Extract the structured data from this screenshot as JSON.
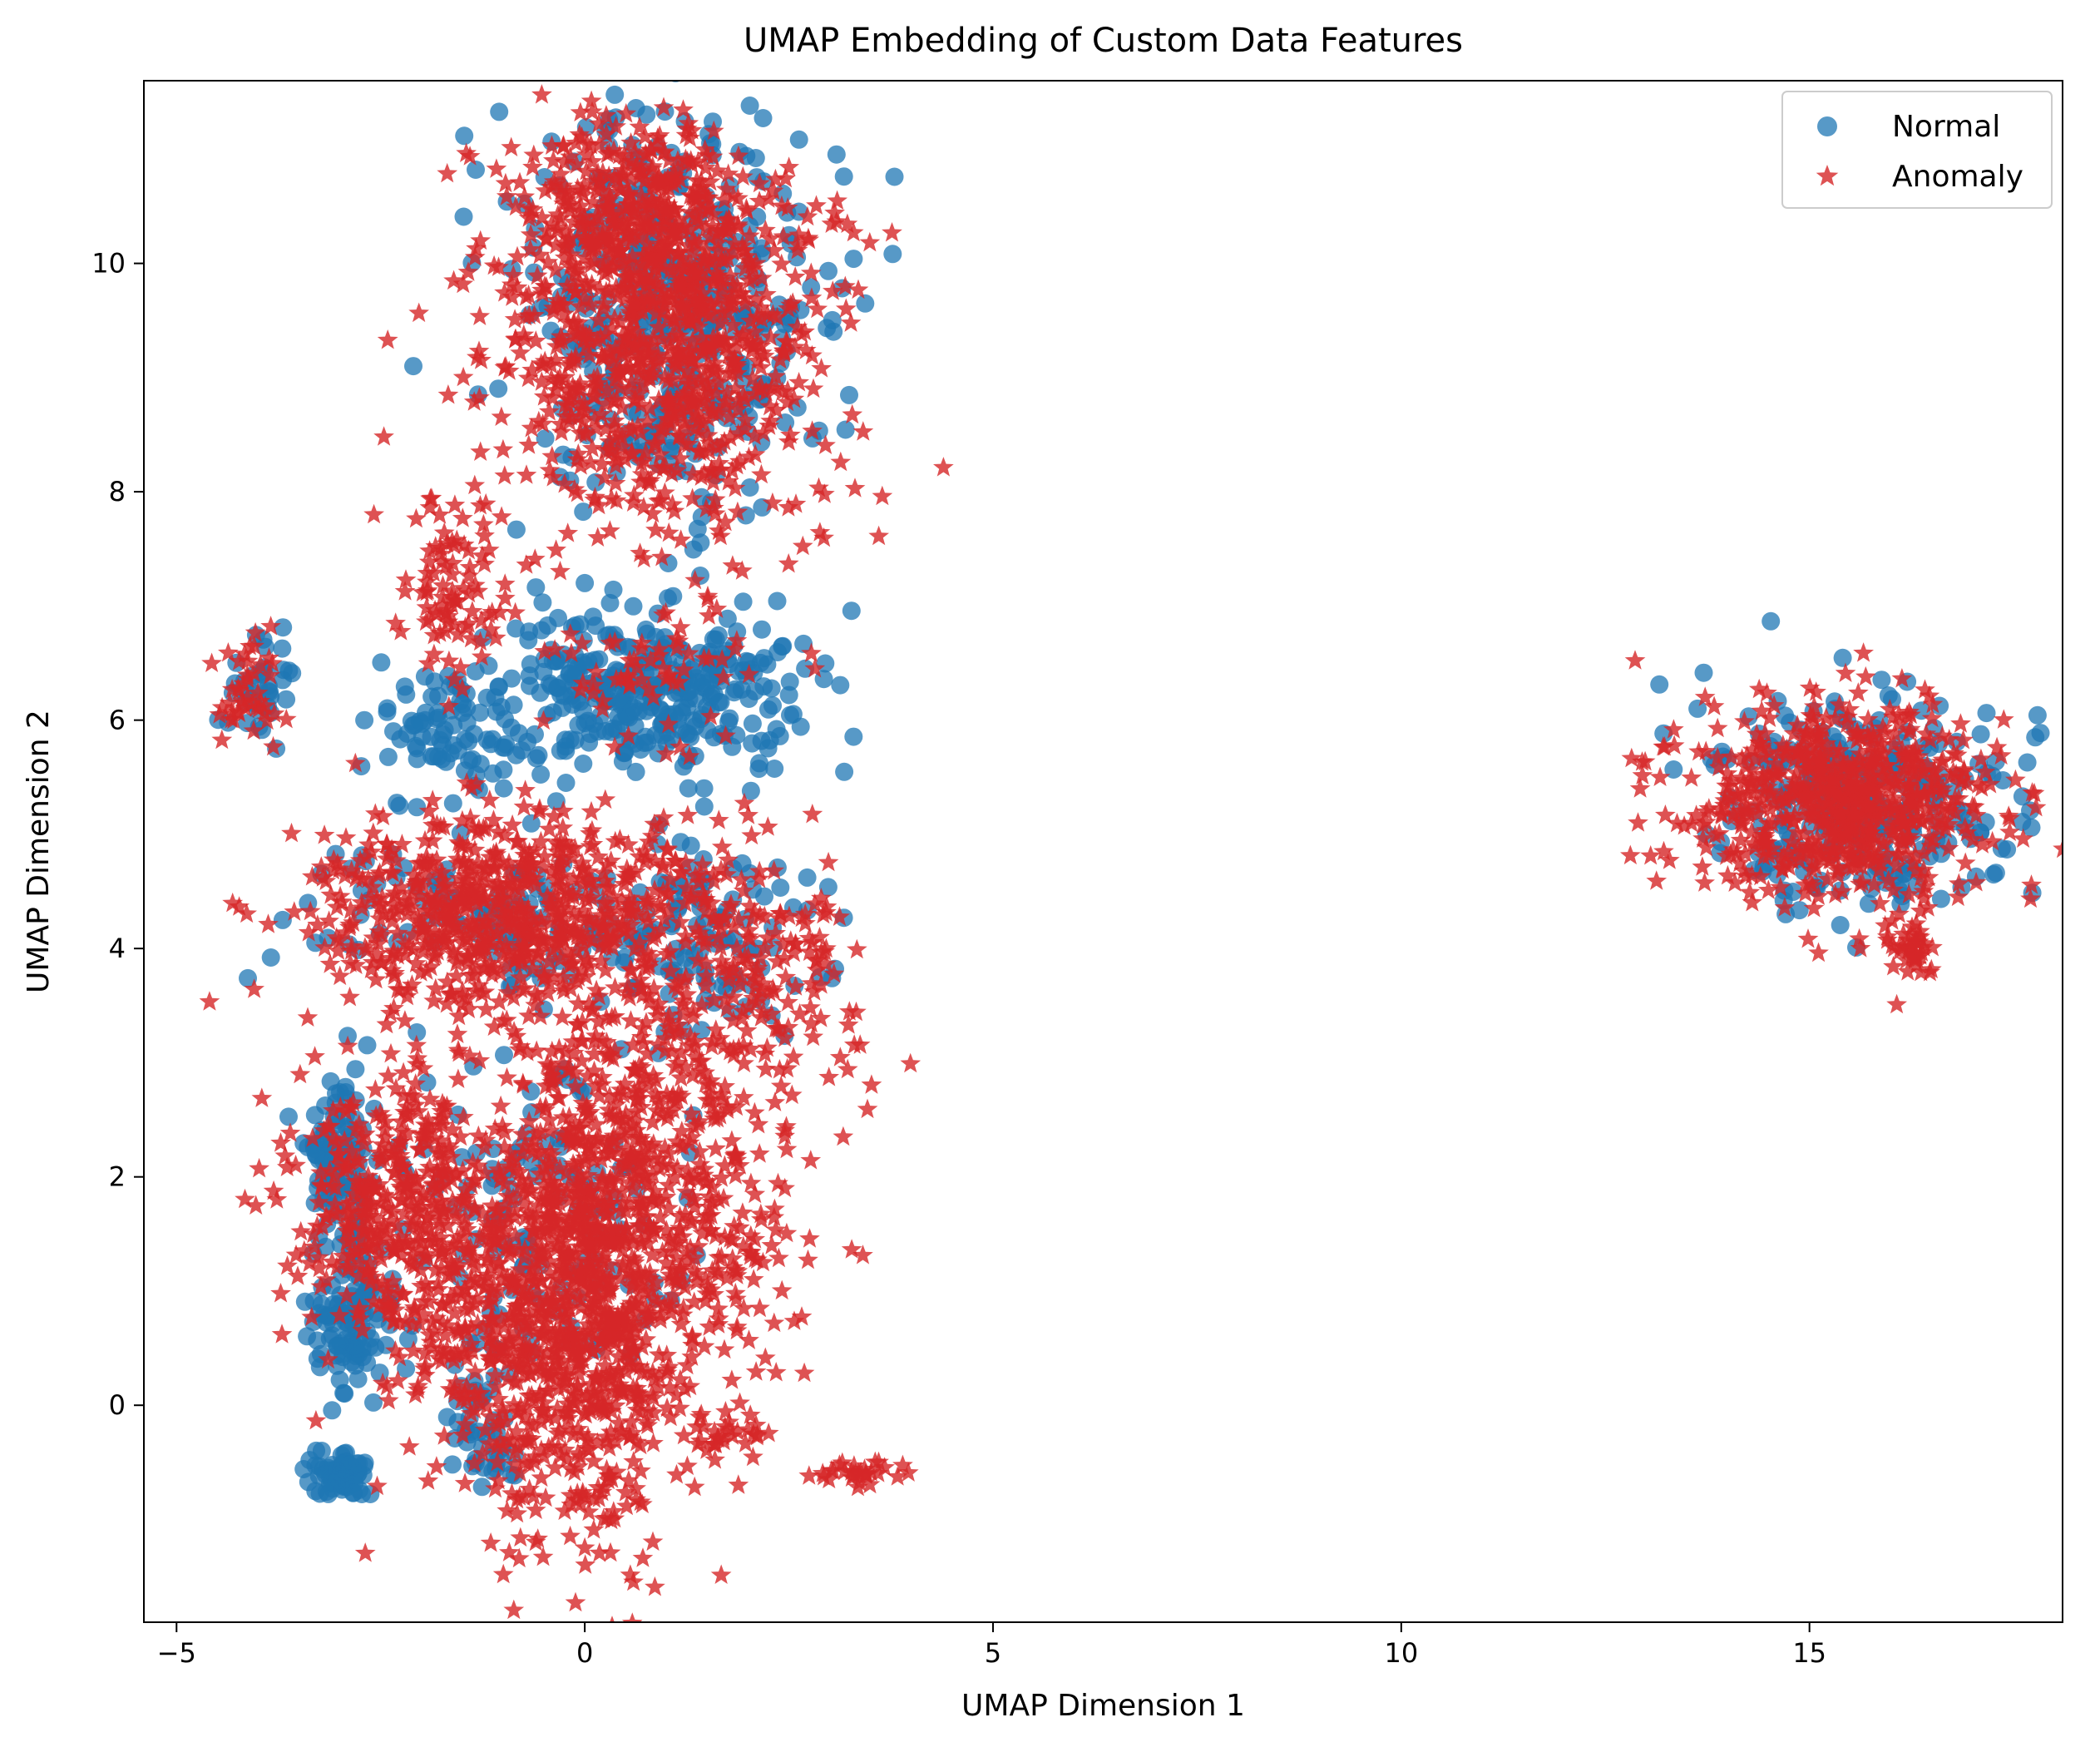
{
  "chart_data": {
    "type": "scatter",
    "title": "UMAP Embedding of Custom Data Features",
    "xlabel": "UMAP Dimension 1",
    "ylabel": "UMAP Dimension 2",
    "xlim": [
      -5.4,
      18.1
    ],
    "ylim": [
      -1.9,
      11.6
    ],
    "xticks": [
      -5,
      0,
      5,
      10,
      15
    ],
    "xtick_labels": [
      "−5",
      "0",
      "5",
      "10",
      "15"
    ],
    "yticks": [
      0,
      2,
      4,
      6,
      8,
      10
    ],
    "ytick_labels": [
      "0",
      "2",
      "4",
      "6",
      "8",
      "10"
    ],
    "grid": false,
    "legend_position": "top-right",
    "series": [
      {
        "name": "Normal",
        "marker": "circle",
        "color": "#1f77b4",
        "clusters": [
          {
            "cx": 1.0,
            "cy": 9.6,
            "sx": 0.95,
            "sy": 0.9,
            "n": 420
          },
          {
            "cx": 0.8,
            "cy": 6.25,
            "sx": 1.0,
            "sy": 0.35,
            "n": 340
          },
          {
            "cx": -1.7,
            "cy": 5.9,
            "sx": 0.45,
            "sy": 0.35,
            "n": 80
          },
          {
            "cx": -4.0,
            "cy": 6.3,
            "sx": 0.2,
            "sy": 0.25,
            "n": 40
          },
          {
            "cx": -1.0,
            "cy": 4.3,
            "sx": 1.3,
            "sy": 0.35,
            "n": 120
          },
          {
            "cx": 1.7,
            "cy": 4.1,
            "sx": 0.6,
            "sy": 0.4,
            "n": 90
          },
          {
            "cx": -3.0,
            "cy": 2.1,
            "sx": 0.2,
            "sy": 0.4,
            "n": 110
          },
          {
            "cx": -2.85,
            "cy": 0.75,
            "sx": 0.25,
            "sy": 0.35,
            "n": 110
          },
          {
            "cx": -3.0,
            "cy": -0.6,
            "sx": 0.18,
            "sy": 0.12,
            "n": 60
          },
          {
            "cx": -0.5,
            "cy": 1.5,
            "sx": 1.0,
            "sy": 0.9,
            "n": 140
          },
          {
            "cx": -1.2,
            "cy": -0.3,
            "sx": 0.25,
            "sy": 0.2,
            "n": 40
          },
          {
            "cx": 15.6,
            "cy": 5.3,
            "sx": 0.9,
            "sy": 0.45,
            "n": 320
          }
        ],
        "outliers": [
          [
            -3.7,
            4.25
          ],
          [
            -3.3,
            4.05
          ],
          [
            -2.7,
            6.0
          ],
          [
            1.3,
            4.9
          ],
          [
            -2.1,
            9.1
          ],
          [
            0.0,
            7.2
          ]
        ]
      },
      {
        "name": "Anomaly",
        "marker": "star",
        "color": "#d62728",
        "clusters": [
          {
            "cx": 1.0,
            "cy": 9.3,
            "sx": 1.0,
            "sy": 0.85,
            "n": 900
          },
          {
            "cx": 0.6,
            "cy": 10.4,
            "sx": 0.75,
            "sy": 0.35,
            "n": 260
          },
          {
            "cx": -1.6,
            "cy": 7.2,
            "sx": 0.35,
            "sy": 0.4,
            "n": 90
          },
          {
            "cx": -4.1,
            "cy": 6.2,
            "sx": 0.18,
            "sy": 0.25,
            "n": 45
          },
          {
            "cx": -1.0,
            "cy": 4.3,
            "sx": 1.2,
            "sy": 0.45,
            "n": 700
          },
          {
            "cx": 1.8,
            "cy": 3.8,
            "sx": 0.8,
            "sy": 0.6,
            "n": 220
          },
          {
            "cx": -2.4,
            "cy": 1.8,
            "sx": 0.6,
            "sy": 0.6,
            "n": 350
          },
          {
            "cx": 0.0,
            "cy": 1.0,
            "sx": 0.55,
            "sy": 1.1,
            "n": 900
          },
          {
            "cx": 1.3,
            "cy": 1.8,
            "sx": 0.7,
            "sy": 0.9,
            "n": 350
          },
          {
            "cx": -1.3,
            "cy": 0.8,
            "sx": 0.6,
            "sy": 0.8,
            "n": 300
          },
          {
            "cx": 0.8,
            "cy": 6.4,
            "sx": 0.8,
            "sy": 0.25,
            "n": 60
          },
          {
            "cx": 3.3,
            "cy": -0.6,
            "sx": 0.25,
            "sy": 0.06,
            "n": 30
          },
          {
            "cx": 1.8,
            "cy": -0.25,
            "sx": 0.25,
            "sy": 0.08,
            "n": 25
          },
          {
            "cx": 15.4,
            "cy": 5.3,
            "sx": 0.9,
            "sy": 0.45,
            "n": 700
          },
          {
            "cx": 16.3,
            "cy": 4.0,
            "sx": 0.15,
            "sy": 0.15,
            "n": 40
          }
        ],
        "outliers": [
          [
            12.9,
            5.1
          ],
          [
            3.6,
            -0.5
          ],
          [
            -0.6,
            -1.2
          ],
          [
            0.0,
            -1.25
          ],
          [
            2.7,
            4.3
          ],
          [
            2.8,
            8.9
          ],
          [
            3.2,
            9.6
          ],
          [
            2.3,
            7.9
          ]
        ]
      }
    ]
  }
}
